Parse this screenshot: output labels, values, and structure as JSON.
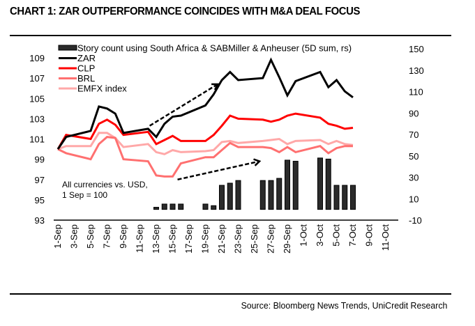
{
  "header": {
    "title": "CHART 1: ZAR OUTPERFORMANCE COINCIDES WITH M&A DEAL FOCUS"
  },
  "footer": {
    "source": "Source: Bloomberg News Trends, UniCredit Research"
  },
  "chart_data": {
    "type": "line",
    "title": "CHART 1: ZAR OUTPERFORMANCE COINCIDES WITH M&A DEAL FOCUS",
    "xlabel": "",
    "ylabel": "",
    "x_domain_days": [
      1,
      41
    ],
    "x_ticks": [
      "1-Sep",
      "3-Sep",
      "5-Sep",
      "7-Sep",
      "9-Sep",
      "11-Sep",
      "13-Sep",
      "15-Sep",
      "17-Sep",
      "19-Sep",
      "21-Sep",
      "23-Sep",
      "25-Sep",
      "27-Sep",
      "29-Sep",
      "1-Oct",
      "3-Oct",
      "5-Oct",
      "7-Oct",
      "9-Oct",
      "11-Oct"
    ],
    "x_tick_days": [
      1,
      3,
      5,
      7,
      9,
      11,
      13,
      15,
      17,
      19,
      21,
      23,
      25,
      27,
      29,
      31,
      33,
      35,
      37,
      39,
      41
    ],
    "dates": [
      "1-Sep",
      "2-Sep",
      "5-Sep",
      "6-Sep",
      "7-Sep",
      "8-Sep",
      "9-Sep",
      "12-Sep",
      "13-Sep",
      "14-Sep",
      "15-Sep",
      "16-Sep",
      "19-Sep",
      "20-Sep",
      "21-Sep",
      "22-Sep",
      "23-Sep",
      "26-Sep",
      "27-Sep",
      "28-Sep",
      "29-Sep",
      "30-Sep",
      "3-Oct",
      "4-Oct",
      "5-Oct",
      "6-Oct",
      "7-Oct"
    ],
    "date_days": [
      1,
      2,
      5,
      6,
      7,
      8,
      9,
      12,
      13,
      14,
      15,
      16,
      19,
      20,
      21,
      22,
      23,
      26,
      27,
      28,
      29,
      30,
      33,
      34,
      35,
      36,
      37
    ],
    "y_left": {
      "range": [
        93,
        109
      ],
      "ticks": [
        93,
        95,
        97,
        99,
        101,
        103,
        105,
        107,
        109
      ]
    },
    "y_right": {
      "range": [
        -10,
        150
      ],
      "ticks": [
        -10,
        10,
        30,
        50,
        70,
        90,
        110,
        130,
        150
      ]
    },
    "grid": false,
    "legend_position": "top-left",
    "series": [
      {
        "name": "Story count using South Africa & SABMiller & Anheuser (5D sum, rs)",
        "kind": "bar",
        "axis": "right",
        "color": "#2b2b2b",
        "values": [
          0,
          0,
          0,
          0,
          0,
          0,
          0,
          0,
          2,
          5,
          5,
          5,
          5,
          3.5,
          22.5,
          24.5,
          27,
          27,
          27,
          29,
          46,
          45,
          48,
          47,
          22.5,
          22.5,
          22.5
        ]
      },
      {
        "name": "ZAR",
        "kind": "line",
        "axis": "left",
        "color": "#000000",
        "values": [
          100,
          101.2,
          101.8,
          104.2,
          104.0,
          103.5,
          101.6,
          102.0,
          101.2,
          102.5,
          103.2,
          103.3,
          104.3,
          105.4,
          106.8,
          107.6,
          106.8,
          107.0,
          108.8,
          107.1,
          105.3,
          106.7,
          107.6,
          106.1,
          106.8,
          105.7,
          105.1
        ]
      },
      {
        "name": "CLP",
        "kind": "line",
        "axis": "left",
        "color": "#ff0000",
        "values": [
          100,
          101.4,
          101.0,
          102.5,
          102.9,
          102.4,
          101.4,
          101.7,
          100.5,
          100.9,
          101.3,
          100.8,
          100.8,
          101.4,
          102.3,
          103.3,
          103.0,
          102.9,
          102.7,
          102.9,
          103.3,
          103.5,
          103.1,
          102.5,
          102.3,
          102.0,
          102.1
        ]
      },
      {
        "name": "BRL",
        "kind": "line",
        "axis": "left",
        "color": "#ff7070",
        "values": [
          100,
          99.6,
          99.0,
          100.5,
          101.2,
          101.1,
          99.0,
          98.8,
          97.4,
          97.3,
          97.3,
          98.6,
          99.2,
          99.2,
          99.9,
          100.6,
          100.2,
          100.2,
          100.1,
          99.7,
          100.2,
          99.7,
          100.3,
          99.6,
          100.1,
          100.3,
          100.3
        ]
      },
      {
        "name": "EMFX index",
        "kind": "line",
        "axis": "left",
        "color": "#ffa8a8",
        "values": [
          100,
          100.3,
          100.3,
          101.6,
          101.6,
          101.1,
          100.2,
          100.5,
          99.7,
          99.5,
          99.9,
          99.7,
          99.8,
          99.9,
          100.7,
          100.8,
          100.6,
          100.8,
          100.9,
          101.0,
          100.5,
          100.8,
          100.9,
          100.5,
          100.8,
          100.5,
          100.4
        ]
      }
    ],
    "annotations": [
      {
        "type": "text",
        "lines": [
          "All currencies vs. USD,",
          "1 Sep = 100"
        ]
      },
      {
        "type": "dashed-arrow",
        "from": {
          "day": 12.2,
          "left_value": 102.3
        },
        "to": {
          "day": 20.5,
          "left_value": 106.4
        }
      },
      {
        "type": "dashed-arrow",
        "from": {
          "day": 15.6,
          "left_value": 97.0
        },
        "to": {
          "day": 25.6,
          "left_value": 98.8
        }
      }
    ]
  }
}
